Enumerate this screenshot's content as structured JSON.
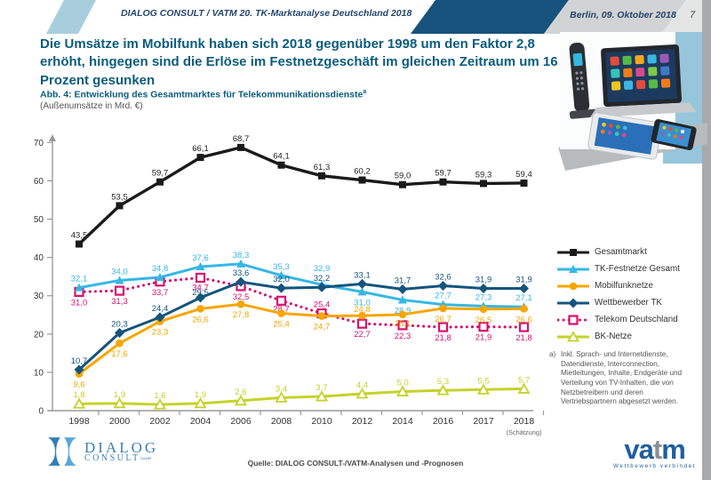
{
  "header": {
    "doc_title": "DIALOG CONSULT / VATM 20. TK-Marktanalyse Deutschland 2018",
    "date": "Berlin, 09. Oktober 2018",
    "page_number": "7"
  },
  "headline": "Die Umsätze im Mobilfunk haben sich 2018 gegenüber 1998 um den Faktor 2,8 erhöht, hingegen sind die Erlöse im Festnetzgeschäft im gleichen Zeitraum um 16 Prozent gesunken",
  "figure": {
    "caption": "Abb. 4: Entwicklung des Gesamtmarktes für Telekommunikationsdienste",
    "caption_superscript": "a",
    "unit_note": "(Außenumsätze in Mrd. €)"
  },
  "chart_data": {
    "type": "line",
    "x": [
      "1998",
      "2000",
      "2002",
      "2004",
      "2006",
      "2008",
      "2010",
      "2012",
      "2014",
      "2016",
      "2017",
      "2018"
    ],
    "x_last_note": "(Schätzung)",
    "ylim": [
      0,
      70
    ],
    "yticks": [
      0,
      10,
      20,
      30,
      40,
      50,
      60,
      70
    ],
    "grid": false,
    "legend_position": "right",
    "series": [
      {
        "name": "Gesamtmarkt",
        "color": "#1a1a1a",
        "marker": "square",
        "line": "solid",
        "values": [
          43.5,
          53.5,
          59.7,
          66.1,
          68.7,
          64.1,
          61.3,
          60.2,
          59.0,
          59.7,
          59.3,
          59.4
        ]
      },
      {
        "name": "TK-Festnetze Gesamt",
        "color": "#36b7e4",
        "marker": "triangle",
        "line": "solid",
        "values": [
          32.1,
          34.0,
          34.8,
          37.6,
          38.3,
          35.3,
          32.9,
          31.0,
          28.9,
          27.7,
          27.3,
          27.1
        ]
      },
      {
        "name": "Mobilfunknetze",
        "color": "#f7a600",
        "marker": "circle",
        "line": "solid",
        "values": [
          9.6,
          17.6,
          23.3,
          26.6,
          27.8,
          25.4,
          24.7,
          24.8,
          25.1,
          26.7,
          26.5,
          26.6
        ]
      },
      {
        "name": "Wettbewerber TK",
        "color": "#15547e",
        "marker": "diamond",
        "line": "solid",
        "values": [
          10.7,
          20.3,
          24.4,
          29.5,
          33.6,
          32.0,
          32.2,
          33.1,
          31.7,
          32.6,
          31.9,
          31.9
        ]
      },
      {
        "name": "Telekom Deutschland",
        "color": "#d4136f",
        "marker": "square-open",
        "line": "dotted",
        "values": [
          31.0,
          31.3,
          33.7,
          34.7,
          32.5,
          28.7,
          25.4,
          22.7,
          22.3,
          21.8,
          21.9,
          21.8
        ]
      },
      {
        "name": "BK-Netze",
        "color": "#c5d22a",
        "marker": "triangle-open",
        "line": "solid",
        "values": [
          1.8,
          1.9,
          1.6,
          1.9,
          2.6,
          3.4,
          3.7,
          4.4,
          5.0,
          5.3,
          5.5,
          5.7
        ]
      }
    ]
  },
  "footnote": {
    "marker": "a)",
    "text": "Inkl. Sprach- und Internetdienste, Datendienste, Interconnection, Mietleitungen, Inhalte, Endgeräte und Verteilung von TV-Inhalten, die von Netzbetreibern und deren Vertriebspartnern abgesetzt werden."
  },
  "footer": {
    "source": "Quelle: DIALOG CONSULT-/VATM-Analysen und -Prognosen",
    "dialog_logo": {
      "line1": "Dialog",
      "line2": "Consult",
      "suffix": "GmbH"
    },
    "vatm_logo": {
      "part1": "va",
      "part2": "t",
      "part3": "m",
      "tagline": "Wettbewerb verbindet"
    }
  }
}
